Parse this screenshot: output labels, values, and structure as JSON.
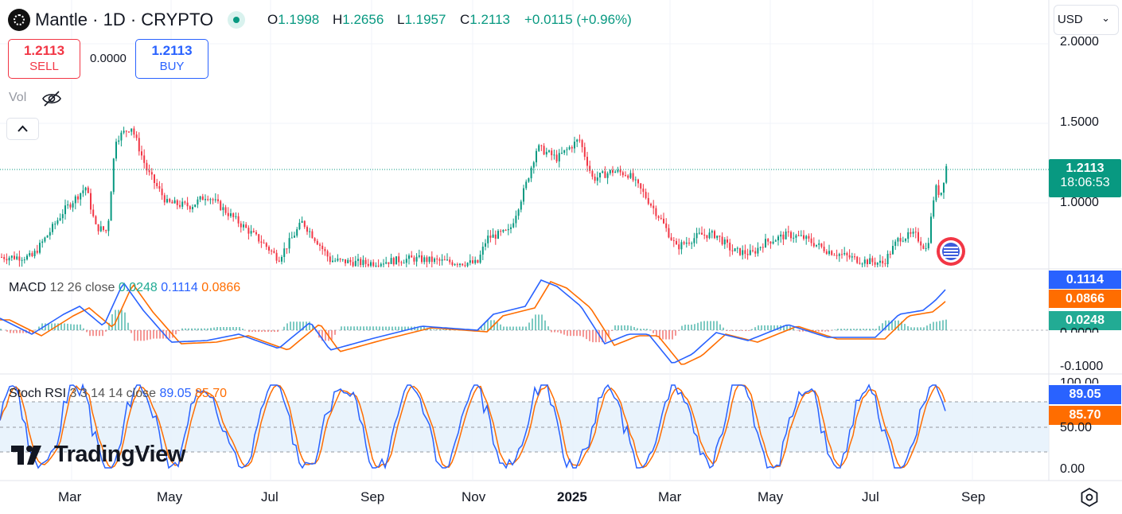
{
  "header": {
    "symbol": "Mantle · 1D · CRYPTO",
    "open_label": "O",
    "open": "1.1998",
    "high_label": "H",
    "high": "1.2656",
    "low_label": "L",
    "low": "1.1957",
    "close_label": "C",
    "close": "1.2113",
    "change": "+0.0115 (+0.96%)"
  },
  "currency": {
    "selected": "USD"
  },
  "trade": {
    "sell_price": "1.2113",
    "sell_label": "SELL",
    "spread": "0.0000",
    "buy_price": "1.2113",
    "buy_label": "BUY"
  },
  "volume": {
    "label": "Vol"
  },
  "price_axis": {
    "ticks": [
      "2.0000",
      "1.5000",
      "1.0000"
    ]
  },
  "last_price": {
    "value": "1.2113",
    "countdown": "18:06:53"
  },
  "macd": {
    "label": "MACD",
    "params": "12 26 close",
    "hist": "0.0248",
    "macd": "0.1114",
    "signal": "0.0866",
    "axis_ticks": [
      "0.0000",
      "-0.1000"
    ]
  },
  "stoch": {
    "label": "Stoch RSI",
    "params": "3 3 14 14 close",
    "k": "89.05",
    "d": "85.70",
    "axis_ticks": [
      "100.00",
      "50.00",
      "0.00"
    ]
  },
  "time_axis": [
    "Mar",
    "May",
    "Jul",
    "Sep",
    "Nov",
    "2025",
    "Mar",
    "May",
    "Jul",
    "Sep"
  ],
  "watermark": "TradingView",
  "colors": {
    "up": "#089981",
    "down": "#f23645",
    "macd": "#2962ff",
    "signal": "#ff6d00",
    "grid": "#f0f3fa"
  },
  "chart_data": {
    "type": "candlestick",
    "y_range": [
      0.62,
      2.05
    ],
    "series": [
      {
        "name": "Mantle",
        "points": [
          {
            "x": "Mar",
            "close": 0.85
          },
          {
            "x": "Apr",
            "close": 1.35
          },
          {
            "x": "May",
            "close": 1.05
          },
          {
            "x": "Jul",
            "close": 0.8
          },
          {
            "x": "Sep",
            "close": 0.62
          },
          {
            "x": "Nov",
            "close": 0.85
          },
          {
            "x": "Dec",
            "close": 1.3
          },
          {
            "x": "2025",
            "close": 1.28
          },
          {
            "x": "Mar",
            "close": 0.7
          },
          {
            "x": "May",
            "close": 0.75
          },
          {
            "x": "Jul",
            "close": 0.65
          },
          {
            "x": "Aug",
            "close": 1.2113
          }
        ]
      }
    ]
  }
}
